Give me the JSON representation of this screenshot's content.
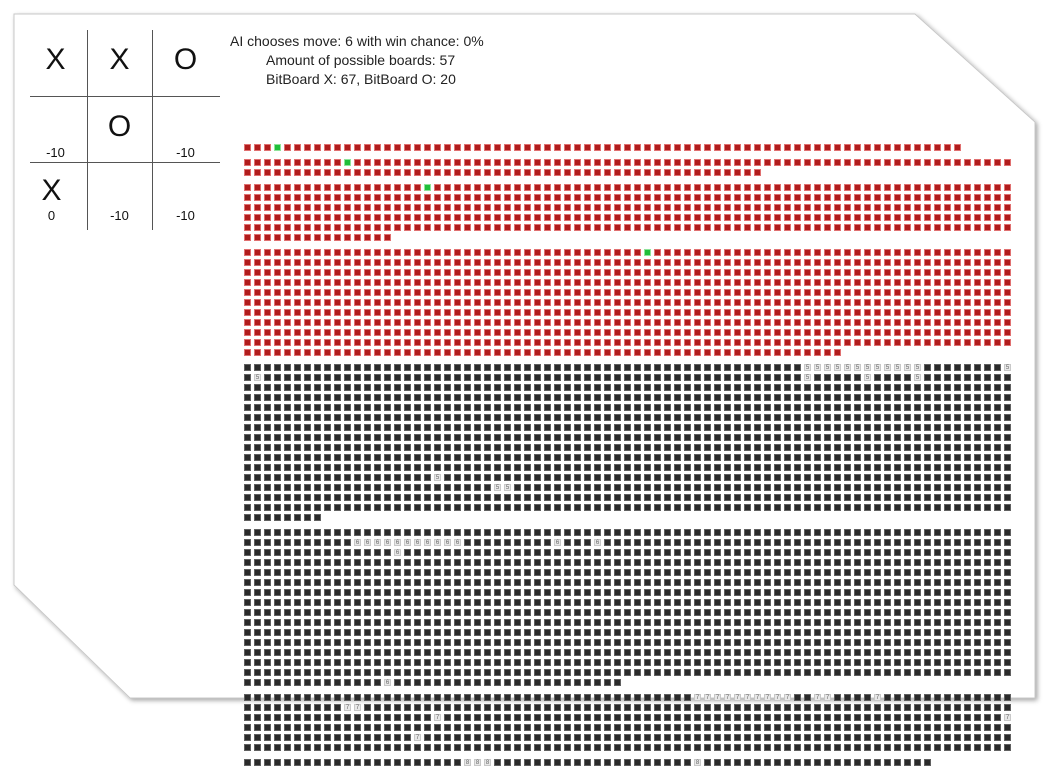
{
  "board": {
    "cells": [
      {
        "mark": "X",
        "score": ""
      },
      {
        "mark": "X",
        "score": ""
      },
      {
        "mark": "O",
        "score": ""
      },
      {
        "mark": "",
        "score": "-10"
      },
      {
        "mark": "O",
        "score": ""
      },
      {
        "mark": "",
        "score": "-10"
      },
      {
        "mark": "X",
        "score": "0"
      },
      {
        "mark": "",
        "score": "-10"
      },
      {
        "mark": "",
        "score": "-10"
      }
    ]
  },
  "info": {
    "ai_line": "AI chooses move: 6 with win chance: 0%",
    "boards_line": "Amount of possible boards: 57",
    "bitboard_line": "BitBoard X: 67, BitBoard O: 20"
  },
  "colors": {
    "losing_board": "#b01c1c",
    "chosen_board": "#1fbf3a",
    "other_board": "#2a2a2a",
    "highlighted_board": "#e8e8e8"
  },
  "board_groups": [
    {
      "color": "red",
      "rows": [
        72
      ],
      "highlights": {
        "0": {
          "3": "green"
        }
      }
    },
    {
      "color": "red",
      "rows": [
        77,
        52
      ],
      "highlights": {
        "0": {
          "10": "green"
        }
      }
    },
    {
      "color": "red",
      "rows": [
        77,
        77,
        77,
        77,
        77,
        15
      ],
      "highlights": {
        "0": {
          "18": "green"
        }
      }
    },
    {
      "color": "red",
      "rows": [
        77,
        77,
        77,
        77,
        77,
        77,
        77,
        77,
        77,
        77,
        60
      ],
      "highlights": {
        "0": {
          "40": "green"
        }
      }
    },
    {
      "color": "dark",
      "rows": [
        77,
        77,
        77,
        77,
        77,
        77,
        77,
        77,
        77,
        77,
        77,
        77,
        77,
        77,
        77,
        8
      ],
      "highlights": {
        "0": {
          "56": "5",
          "57": "5",
          "58": "5",
          "59": "5",
          "60": "5",
          "61": "5",
          "62": "5",
          "63": "5",
          "64": "5",
          "65": "5",
          "66": "5",
          "67": "5",
          "76": "5"
        },
        "1": {
          "1": "5",
          "56": "5",
          "62": "5",
          "67": "5"
        },
        "11": {
          "19": "5"
        },
        "12": {
          "25": "5",
          "26": "5"
        }
      }
    },
    {
      "color": "dark",
      "rows": [
        77,
        77,
        77,
        77,
        77,
        77,
        77,
        77,
        77,
        77,
        77,
        77,
        77,
        77,
        77,
        38
      ],
      "highlights": {
        "1": {
          "11": "6",
          "12": "6",
          "13": "6",
          "14": "6",
          "15": "6",
          "16": "6",
          "17": "6",
          "18": "6",
          "19": "6",
          "20": "6",
          "21": "6",
          "31": "6",
          "35": "6"
        },
        "2": {
          "15": "6"
        },
        "15": {
          "14": "6"
        }
      }
    },
    {
      "color": "dark",
      "rows": [
        77,
        77,
        77,
        77,
        77,
        77
      ],
      "highlights": {
        "0": {
          "45": "7",
          "46": "7",
          "47": "7",
          "48": "7",
          "49": "7",
          "50": "7",
          "51": "7",
          "52": "7",
          "53": "7",
          "54": "7",
          "57": "7",
          "58": "7",
          "63": "7"
        },
        "1": {
          "10": "7",
          "11": "7"
        },
        "2": {
          "19": "7",
          "76": "7"
        },
        "4": {
          "17": "7"
        }
      }
    },
    {
      "color": "dark",
      "rows": [
        69
      ],
      "highlights": {
        "0": {
          "22": "8",
          "23": "8",
          "24": "8",
          "45": "8"
        }
      }
    }
  ]
}
